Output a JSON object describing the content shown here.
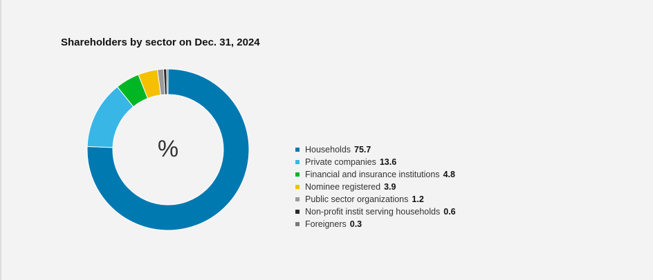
{
  "title": "Shareholders by sector on Dec. 31, 2024",
  "center_label": "%",
  "chart_data": {
    "type": "pie",
    "title": "Shareholders by sector on Dec. 31, 2024",
    "unit": "%",
    "categories": [
      "Households",
      "Private companies",
      "Financial and insurance institutions",
      "Nominee registered",
      "Public sector organizations",
      "Non-profit instit serving households",
      "Foreigners"
    ],
    "values": [
      75.7,
      13.6,
      4.8,
      3.9,
      1.2,
      0.6,
      0.3
    ],
    "colors": [
      "#0079b1",
      "#38b6e6",
      "#00b624",
      "#f5c000",
      "#9a9a9a",
      "#2a2a2a",
      "#7a7a7a"
    ],
    "legend": "right"
  }
}
